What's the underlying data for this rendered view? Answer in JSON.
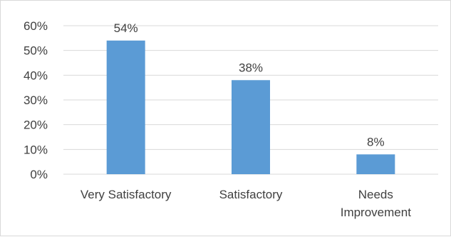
{
  "chart_data": {
    "type": "bar",
    "title": "",
    "xlabel": "",
    "ylabel": "",
    "categories": [
      "Very Satisfactory",
      "Satisfactory",
      "Needs Improvement"
    ],
    "category_lines": [
      [
        "Very Satisfactory"
      ],
      [
        "Satisfactory"
      ],
      [
        "Needs",
        "Improvement"
      ]
    ],
    "values": [
      54,
      38,
      8
    ],
    "data_labels": [
      "54%",
      "38%",
      "8%"
    ],
    "ylim": [
      0,
      60
    ],
    "yticks": [
      0,
      10,
      20,
      30,
      40,
      50,
      60
    ],
    "ytick_labels": [
      "0%",
      "10%",
      "20%",
      "30%",
      "40%",
      "50%",
      "60%"
    ],
    "grid": true,
    "legend": "none",
    "colors": {
      "bar": "#5b9bd5",
      "grid": "#d9d9d9",
      "text": "#404040"
    }
  }
}
